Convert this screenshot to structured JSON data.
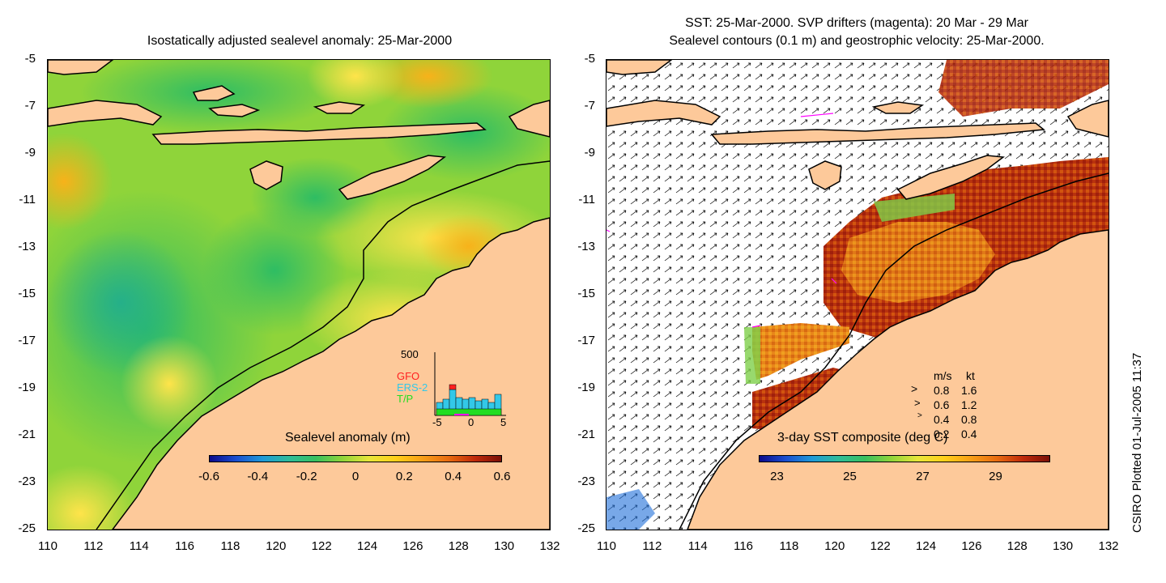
{
  "left_panel": {
    "title": "Isostatically adjusted sealevel anomaly: 25-Mar-2000",
    "colorbar": {
      "label": "Sealevel anomaly (m)",
      "ticks": [
        "-0.6",
        "-0.4",
        "-0.2",
        "0",
        "0.2",
        "0.4",
        "0.6"
      ],
      "range": [
        -0.6,
        0.6
      ]
    },
    "histogram": {
      "ymax_label": "500",
      "series_labels": [
        "GFO",
        "ERS-2",
        "T/P"
      ],
      "series_colors": [
        "#ff2020",
        "#33c8e8",
        "#22dd22"
      ],
      "x_ticks": [
        "-5",
        "0",
        "5"
      ]
    }
  },
  "right_panel": {
    "title_line1": "SST: 25-Mar-2000. SVP drifters (magenta): 20 Mar - 29 Mar",
    "title_line2": "Sealevel contours (0.1 m) and geostrophic velocity: 25-Mar-2000.",
    "colorbar": {
      "label": "3-day SST composite (deg C)",
      "ticks": [
        "23",
        "25",
        "27",
        "29"
      ],
      "range": [
        22.5,
        30.5
      ]
    },
    "velocity_legend": {
      "header_ms": "m/s",
      "header_kt": "kt",
      "rows": [
        {
          "ms": "0.8",
          "kt": "1.6"
        },
        {
          "ms": "0.6",
          "kt": "1.2"
        },
        {
          "ms": "0.4",
          "kt": "0.8"
        },
        {
          "ms": "0.2",
          "kt": "0.4"
        }
      ]
    }
  },
  "axes": {
    "y_ticks": [
      "-5",
      "-7",
      "-9",
      "-11",
      "-13",
      "-15",
      "-17",
      "-19",
      "-21",
      "-23",
      "-25"
    ],
    "x_ticks": [
      "110",
      "112",
      "114",
      "116",
      "118",
      "120",
      "122",
      "124",
      "126",
      "128",
      "130",
      "132"
    ],
    "lon_range": [
      110,
      132
    ],
    "lat_range": [
      -25,
      -5
    ]
  },
  "footer": {
    "credit": "CSIRO Plotted 01-Jul-2005 11:37"
  },
  "colors": {
    "land": "#fdc99a",
    "coast": "#000000"
  }
}
